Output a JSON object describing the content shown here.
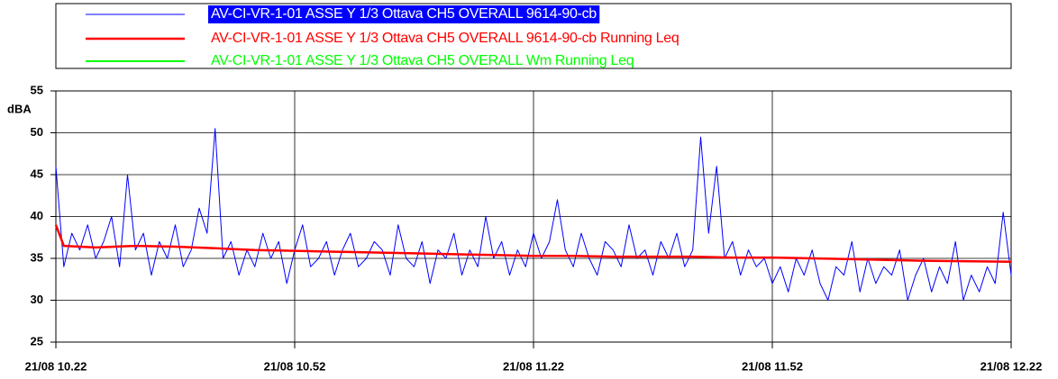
{
  "chart_data": {
    "type": "line",
    "y_label": "dBA",
    "xlim": [
      0,
      120
    ],
    "xticks": [
      {
        "value": 0,
        "label": "21/08 10.22"
      },
      {
        "value": 30,
        "label": "21/08 10.52"
      },
      {
        "value": 60,
        "label": "21/08 11.22"
      },
      {
        "value": 90,
        "label": "21/08 11.52"
      },
      {
        "value": 120,
        "label": "21/08 12.22"
      }
    ],
    "ylim": [
      25,
      55
    ],
    "yticks": [
      25,
      30,
      35,
      40,
      45,
      50,
      55
    ],
    "grid": true,
    "legend": "top",
    "series": [
      {
        "name": "AV-CI-VR-1-01 ASSE Y 1/3 Ottava CH5 OVERALL 9614-90-cb",
        "color": "#0000ff",
        "width": 1,
        "x": [
          0,
          1,
          2,
          3,
          4,
          5,
          6,
          7,
          8,
          9,
          10,
          11,
          12,
          13,
          14,
          15,
          16,
          17,
          18,
          19,
          20,
          21,
          22,
          23,
          24,
          25,
          26,
          27,
          28,
          29,
          30,
          31,
          32,
          33,
          34,
          35,
          36,
          37,
          38,
          39,
          40,
          41,
          42,
          43,
          44,
          45,
          46,
          47,
          48,
          49,
          50,
          51,
          52,
          53,
          54,
          55,
          56,
          57,
          58,
          59,
          60,
          61,
          62,
          63,
          64,
          65,
          66,
          67,
          68,
          69,
          70,
          71,
          72,
          73,
          74,
          75,
          76,
          77,
          78,
          79,
          80,
          81,
          82,
          83,
          84,
          85,
          86,
          87,
          88,
          89,
          90,
          91,
          92,
          93,
          94,
          95,
          96,
          97,
          98,
          99,
          100,
          101,
          102,
          103,
          104,
          105,
          106,
          107,
          108,
          109,
          110,
          111,
          112,
          113,
          114,
          115,
          116,
          117,
          118,
          119,
          120
        ],
        "values": [
          46,
          34,
          38,
          36,
          39,
          35,
          37,
          40,
          34,
          45,
          36,
          38,
          33,
          37,
          35,
          39,
          34,
          36,
          41,
          38,
          50.5,
          35,
          37,
          33,
          36,
          34,
          38,
          35,
          37,
          32,
          36,
          39,
          34,
          35,
          37,
          33,
          36,
          38,
          34,
          35,
          37,
          36,
          33,
          39,
          35,
          34,
          37,
          32,
          36,
          35,
          38,
          33,
          36,
          34,
          40,
          35,
          37,
          33,
          36,
          34,
          38,
          35,
          37,
          42,
          36,
          34,
          38,
          35,
          33,
          37,
          36,
          34,
          39,
          35,
          36,
          33,
          37,
          35,
          38,
          34,
          36,
          49.5,
          38,
          46,
          35,
          37,
          33,
          36,
          34,
          35,
          32,
          34,
          31,
          35,
          33,
          36,
          32,
          30,
          34,
          33,
          37,
          31,
          35,
          32,
          34,
          33,
          36,
          30,
          33,
          35,
          31,
          34,
          32,
          37,
          30,
          33,
          31,
          34,
          32,
          40.5,
          33
        ]
      },
      {
        "name": "AV-CI-VR-1-01 ASSE Y 1/3 Ottava CH5 OVERALL Wm Running Leq",
        "color": "#00ff00",
        "width": 2,
        "x": [
          0,
          1,
          5,
          10,
          15,
          20,
          25,
          30,
          35,
          40,
          45,
          50,
          55,
          60,
          65,
          70,
          75,
          80,
          85,
          90,
          95,
          100,
          105,
          110,
          120
        ],
        "values": [
          39,
          36.5,
          36.3,
          36.5,
          36.4,
          36.2,
          36,
          35.9,
          35.8,
          35.7,
          35.6,
          35.5,
          35.4,
          35.3,
          35.3,
          35.2,
          35.2,
          35.2,
          35.1,
          35.1,
          35,
          34.9,
          34.8,
          34.7,
          34.6
        ]
      },
      {
        "name": "AV-CI-VR-1-01 ASSE Y 1/3 Ottava CH5 OVERALL 9614-90-cb Running Leq",
        "color": "#ff0000",
        "width": 2.5,
        "x": [
          0,
          1,
          5,
          10,
          15,
          20,
          25,
          30,
          35,
          40,
          45,
          50,
          55,
          60,
          65,
          70,
          75,
          80,
          85,
          90,
          95,
          100,
          105,
          110,
          120
        ],
        "values": [
          39,
          36.5,
          36.3,
          36.5,
          36.4,
          36.2,
          36,
          35.9,
          35.8,
          35.7,
          35.6,
          35.5,
          35.4,
          35.3,
          35.3,
          35.2,
          35.2,
          35.2,
          35.1,
          35.1,
          35,
          34.9,
          34.8,
          34.7,
          34.6
        ]
      }
    ]
  }
}
